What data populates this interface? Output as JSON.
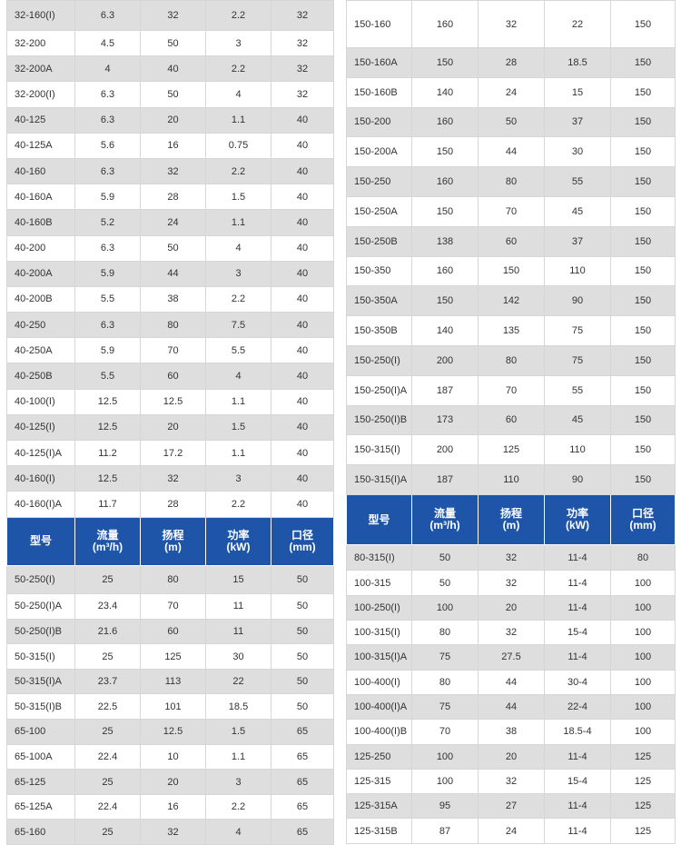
{
  "header": {
    "model": "型号",
    "flow": [
      "流量",
      "(m³/h)"
    ],
    "head": [
      "扬程",
      "(m)"
    ],
    "power": [
      "功率",
      "(kW)"
    ],
    "bore": [
      "口径",
      "(mm)"
    ]
  },
  "left_top_rows": [
    [
      "32-160(I)",
      "6.3",
      "32",
      "2.2",
      "32"
    ],
    [
      "32-200",
      "4.5",
      "50",
      "3",
      "32"
    ],
    [
      "32-200A",
      "4",
      "40",
      "2.2",
      "32"
    ],
    [
      "32-200(I)",
      "6.3",
      "50",
      "4",
      "32"
    ],
    [
      "40-125",
      "6.3",
      "20",
      "1.1",
      "40"
    ],
    [
      "40-125A",
      "5.6",
      "16",
      "0.75",
      "40"
    ],
    [
      "40-160",
      "6.3",
      "32",
      "2.2",
      "40"
    ],
    [
      "40-160A",
      "5.9",
      "28",
      "1.5",
      "40"
    ],
    [
      "40-160B",
      "5.2",
      "24",
      "1.1",
      "40"
    ],
    [
      "40-200",
      "6.3",
      "50",
      "4",
      "40"
    ],
    [
      "40-200A",
      "5.9",
      "44",
      "3",
      "40"
    ],
    [
      "40-200B",
      "5.5",
      "38",
      "2.2",
      "40"
    ],
    [
      "40-250",
      "6.3",
      "80",
      "7.5",
      "40"
    ],
    [
      "40-250A",
      "5.9",
      "70",
      "5.5",
      "40"
    ],
    [
      "40-250B",
      "5.5",
      "60",
      "4",
      "40"
    ],
    [
      "40-100(I)",
      "12.5",
      "12.5",
      "1.1",
      "40"
    ],
    [
      "40-125(I)",
      "12.5",
      "20",
      "1.5",
      "40"
    ],
    [
      "40-125(I)A",
      "11.2",
      "17.2",
      "1.1",
      "40"
    ],
    [
      "40-160(I)",
      "12.5",
      "32",
      "3",
      "40"
    ],
    [
      "40-160(I)A",
      "11.7",
      "28",
      "2.2",
      "40"
    ]
  ],
  "left_bottom_rows": [
    [
      "50-250(I)",
      "25",
      "80",
      "15",
      "50"
    ],
    [
      "50-250(I)A",
      "23.4",
      "70",
      "11",
      "50"
    ],
    [
      "50-250(I)B",
      "21.6",
      "60",
      "11",
      "50"
    ],
    [
      "50-315(I)",
      "25",
      "125",
      "30",
      "50"
    ],
    [
      "50-315(I)A",
      "23.7",
      "113",
      "22",
      "50"
    ],
    [
      "50-315(I)B",
      "22.5",
      "101",
      "18.5",
      "50"
    ],
    [
      "65-100",
      "25",
      "12.5",
      "1.5",
      "65"
    ],
    [
      "65-100A",
      "22.4",
      "10",
      "1.1",
      "65"
    ],
    [
      "65-125",
      "25",
      "20",
      "3",
      "65"
    ],
    [
      "65-125A",
      "22.4",
      "16",
      "2.2",
      "65"
    ],
    [
      "65-160",
      "25",
      "32",
      "4",
      "65"
    ]
  ],
  "right_top_rows": [
    [
      "150-160",
      "160",
      "32",
      "22",
      "150"
    ],
    [
      "150-160A",
      "150",
      "28",
      "18.5",
      "150"
    ],
    [
      "150-160B",
      "140",
      "24",
      "15",
      "150"
    ],
    [
      "150-200",
      "160",
      "50",
      "37",
      "150"
    ],
    [
      "150-200A",
      "150",
      "44",
      "30",
      "150"
    ],
    [
      "150-250",
      "160",
      "80",
      "55",
      "150"
    ],
    [
      "150-250A",
      "150",
      "70",
      "45",
      "150"
    ],
    [
      "150-250B",
      "138",
      "60",
      "37",
      "150"
    ],
    [
      "150-350",
      "160",
      "150",
      "110",
      "150"
    ],
    [
      "150-350A",
      "150",
      "142",
      "90",
      "150"
    ],
    [
      "150-350B",
      "140",
      "135",
      "75",
      "150"
    ],
    [
      "150-250(I)",
      "200",
      "80",
      "75",
      "150"
    ],
    [
      "150-250(I)A",
      "187",
      "70",
      "55",
      "150"
    ],
    [
      "150-250(I)B",
      "173",
      "60",
      "45",
      "150"
    ],
    [
      "150-315(I)",
      "200",
      "125",
      "110",
      "150"
    ],
    [
      "150-315(I)A",
      "187",
      "110",
      "90",
      "150"
    ]
  ],
  "right_bottom_rows": [
    [
      "80-315(I)",
      "50",
      "32",
      "11-4",
      "80"
    ],
    [
      "100-315",
      "50",
      "32",
      "11-4",
      "100"
    ],
    [
      "100-250(I)",
      "100",
      "20",
      "11-4",
      "100"
    ],
    [
      "100-315(I)",
      "80",
      "32",
      "15-4",
      "100"
    ],
    [
      "100-315(I)A",
      "75",
      "27.5",
      "11-4",
      "100"
    ],
    [
      "100-400(I)",
      "80",
      "44",
      "30-4",
      "100"
    ],
    [
      "100-400(I)A",
      "75",
      "44",
      "22-4",
      "100"
    ],
    [
      "100-400(I)B",
      "70",
      "38",
      "18.5-4",
      "100"
    ],
    [
      "125-250",
      "100",
      "20",
      "11-4",
      "125"
    ],
    [
      "125-315",
      "100",
      "32",
      "15-4",
      "125"
    ],
    [
      "125-315A",
      "95",
      "27",
      "11-4",
      "125"
    ],
    [
      "125-315B",
      "87",
      "24",
      "11-4",
      "125"
    ]
  ],
  "colors": {
    "header_bg": "#1e55a8",
    "header_text": "#ffffff",
    "shaded_row": "#dedede",
    "border": "#d6d6d6"
  }
}
